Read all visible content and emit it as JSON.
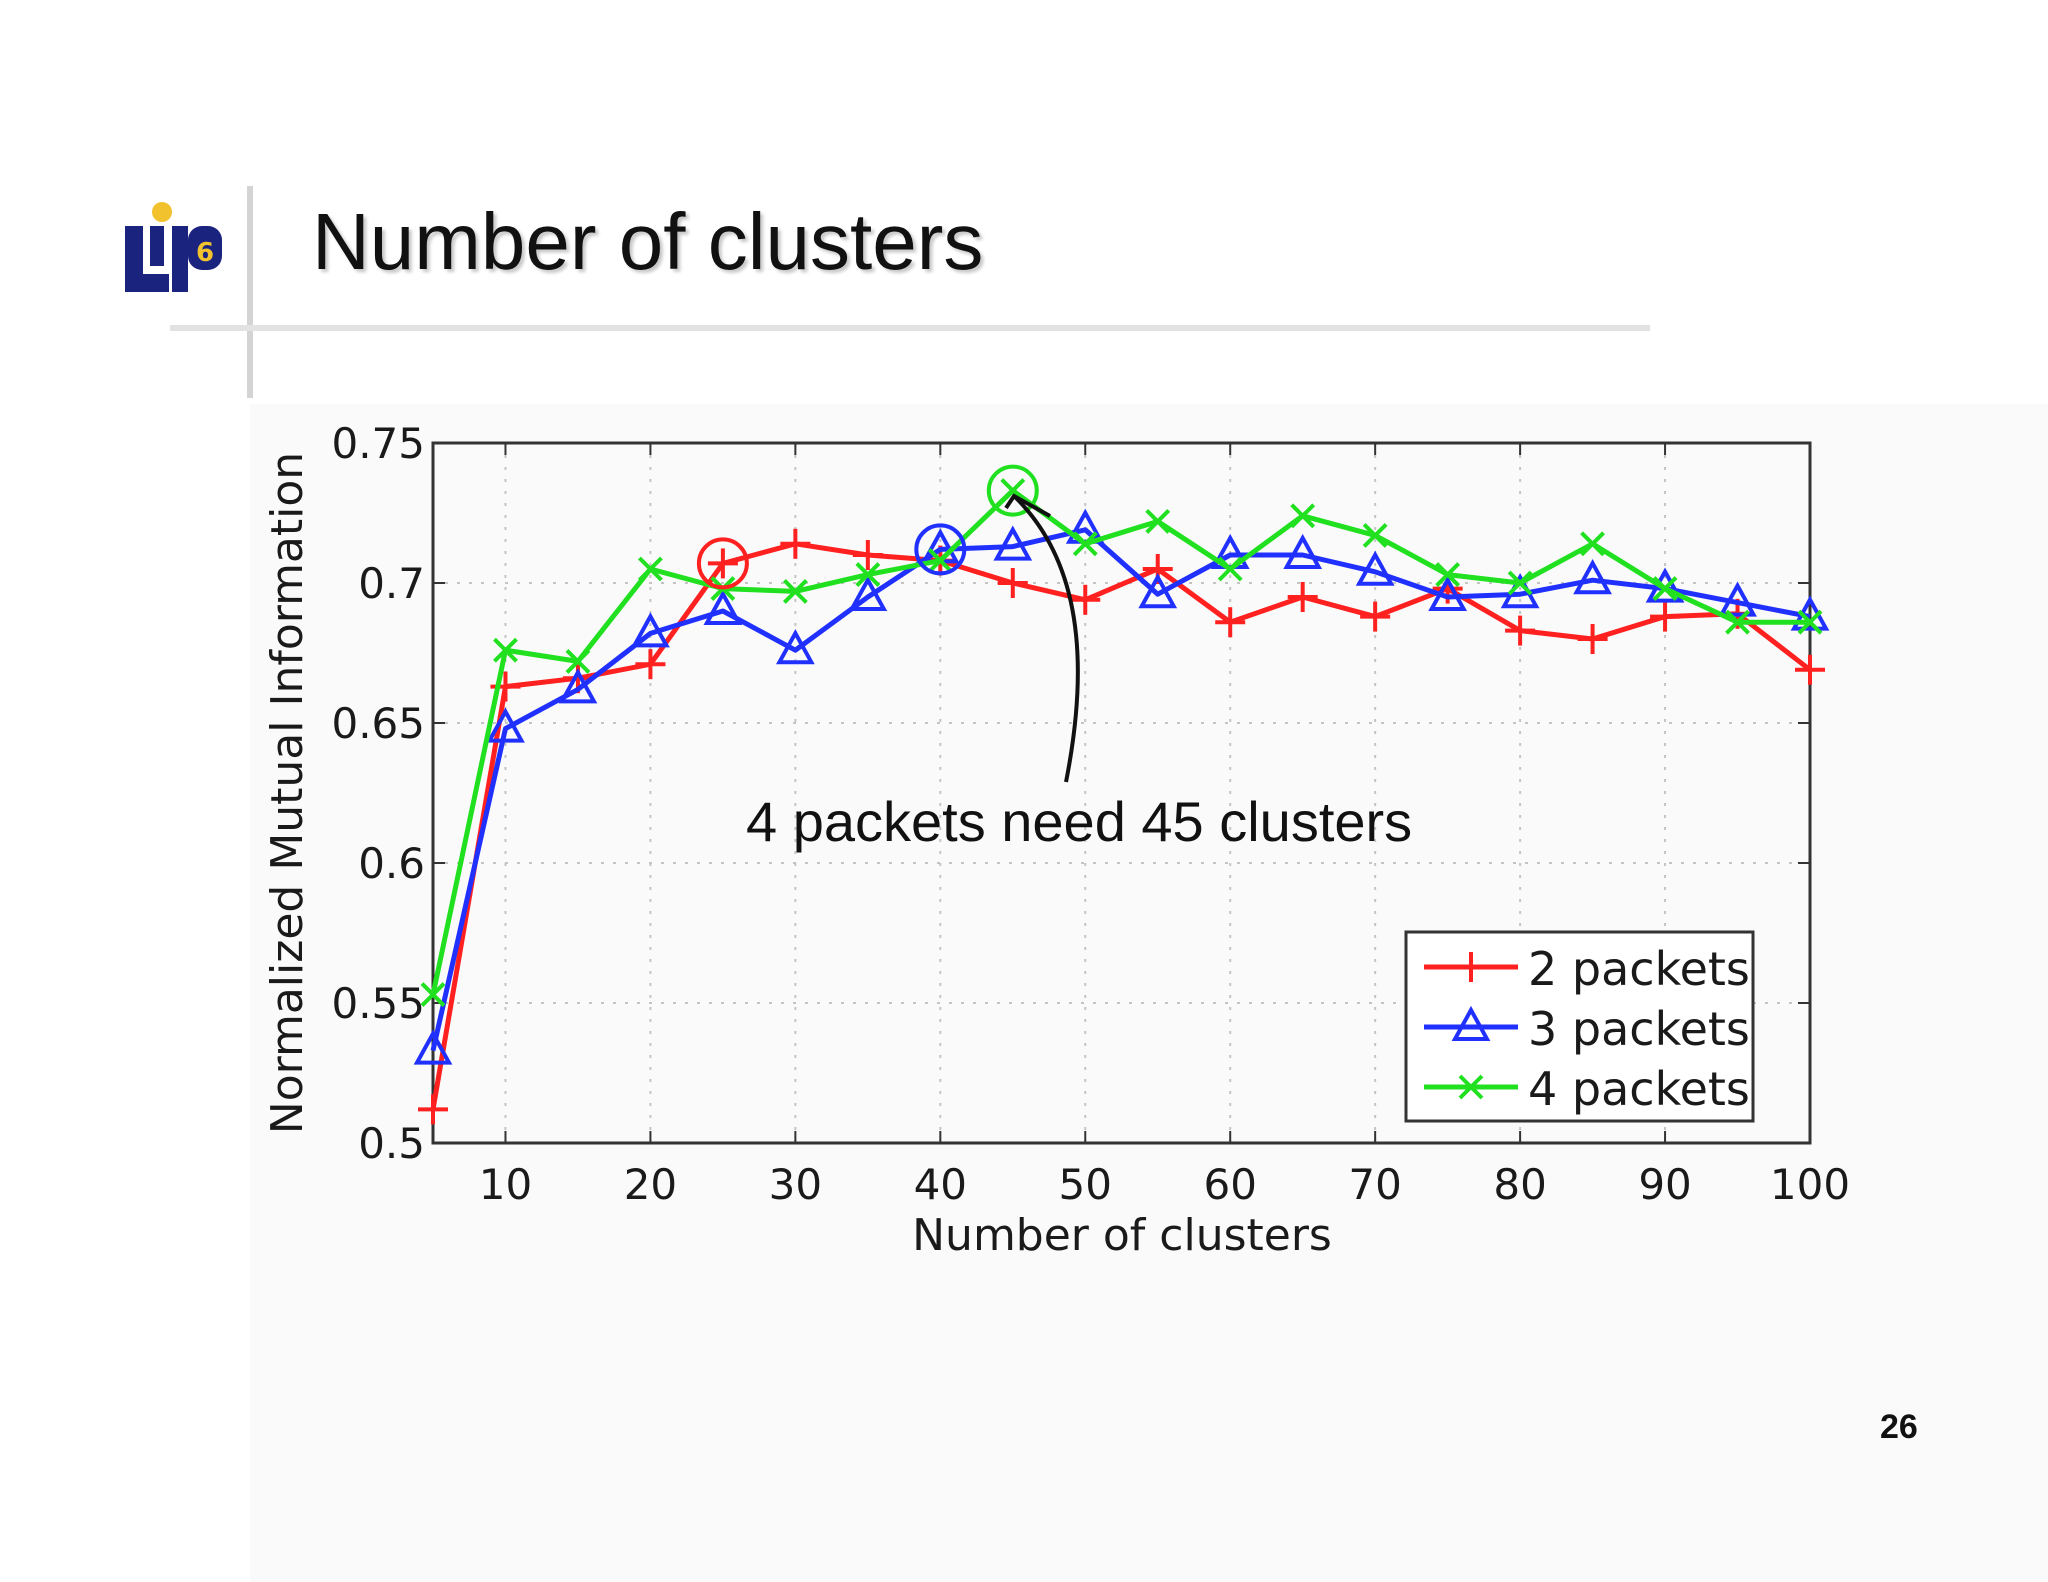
{
  "slide": {
    "title": "Number of clusters",
    "page_number": "26",
    "logo_text": "LIP6"
  },
  "colors": {
    "series_2": "#ff2020",
    "series_3": "#2030ff",
    "series_4": "#20e020",
    "logo_blue": "#1a237e",
    "logo_gold": "#f2c12e"
  },
  "chart_data": {
    "type": "line",
    "title": "",
    "xlabel": "Number of clusters",
    "ylabel": "Normalized Mutual Information",
    "xlim": [
      5,
      100
    ],
    "ylim": [
      0.5,
      0.75
    ],
    "xticks": [
      10,
      20,
      30,
      40,
      50,
      60,
      70,
      80,
      90,
      100
    ],
    "yticks": [
      0.5,
      0.55,
      0.6,
      0.65,
      0.7,
      0.75
    ],
    "ytick_labels": [
      "0.5",
      "0.55",
      "0.6",
      "0.65",
      "0.7",
      "0.75"
    ],
    "grid": true,
    "legend_position": "bottom-right",
    "x": [
      5,
      10,
      15,
      20,
      25,
      30,
      35,
      40,
      45,
      50,
      55,
      60,
      65,
      70,
      75,
      80,
      85,
      90,
      95,
      100
    ],
    "series": [
      {
        "name": "2 packets",
        "marker": "plus",
        "color": "#ff2020",
        "values": [
          0.512,
          0.663,
          0.666,
          0.671,
          0.707,
          0.714,
          0.71,
          0.708,
          0.7,
          0.694,
          0.705,
          0.686,
          0.695,
          0.688,
          0.698,
          0.683,
          0.68,
          0.688,
          0.689,
          0.669
        ]
      },
      {
        "name": "3 packets",
        "marker": "triangle",
        "color": "#2030ff",
        "values": [
          0.533,
          0.648,
          0.662,
          0.682,
          0.69,
          0.676,
          0.695,
          0.712,
          0.713,
          0.719,
          0.696,
          0.71,
          0.71,
          0.704,
          0.695,
          0.696,
          0.701,
          0.698,
          0.693,
          0.688
        ]
      },
      {
        "name": "4 packets",
        "marker": "x",
        "color": "#20e020",
        "values": [
          0.553,
          0.676,
          0.672,
          0.705,
          0.698,
          0.697,
          0.703,
          0.708,
          0.733,
          0.714,
          0.722,
          0.705,
          0.724,
          0.717,
          0.703,
          0.7,
          0.714,
          0.698,
          0.686,
          0.686
        ]
      }
    ],
    "highlighted_points": [
      {
        "series": "2 packets",
        "x": 25,
        "y": 0.707
      },
      {
        "series": "3 packets",
        "x": 40,
        "y": 0.712
      },
      {
        "series": "4 packets",
        "x": 45,
        "y": 0.733
      }
    ],
    "annotation": {
      "text": "4 packets need 45 clusters",
      "points_to": {
        "x": 45,
        "y": 0.733
      }
    }
  }
}
